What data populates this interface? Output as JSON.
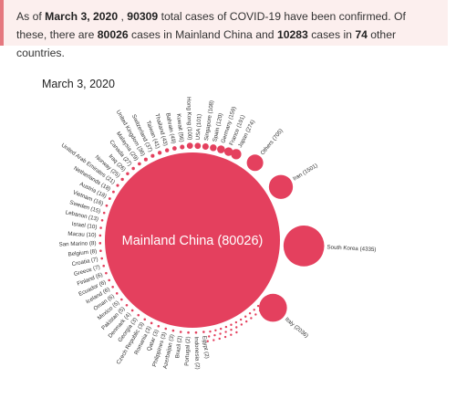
{
  "banner": {
    "t1": "As of ",
    "date": "March 3, 2020",
    "t2": " , ",
    "total": "90309",
    "t3": " total cases of COVID-19 have been confirmed. Of these, there are ",
    "china": "80026",
    "t4": " cases in Mainland China and ",
    "other": "10283",
    "t5": " cases in ",
    "countries": "74",
    "t6": " other countries."
  },
  "colors": {
    "bubble": "#e4405e",
    "accent": "#e5787f"
  },
  "chart_data": {
    "type": "bubble",
    "title": "March 3, 2020",
    "center": {
      "name": "Mainland China",
      "value": 80026,
      "label": "Mainland China (80026)"
    },
    "countries": [
      {
        "name": "Italy",
        "value": 2036,
        "label": "Italy (2036)"
      },
      {
        "name": "South Korea",
        "value": 4335,
        "label": "South Korea (4335)"
      },
      {
        "name": "Iran",
        "value": 1501,
        "label": "Iran (1501)"
      },
      {
        "name": "Others",
        "value": 705,
        "label": "Others (705)"
      },
      {
        "name": "Japan",
        "value": 274,
        "label": "Japan (274)"
      },
      {
        "name": "France",
        "value": 191,
        "label": "France (191)"
      },
      {
        "name": "Germany",
        "value": 159,
        "label": "Germany (159)"
      },
      {
        "name": "Spain",
        "value": 120,
        "label": "Spain (120)"
      },
      {
        "name": "Singapore",
        "value": 108,
        "label": "Singapore (108)"
      },
      {
        "name": "USA",
        "value": 101,
        "label": "USA (101)"
      },
      {
        "name": "Hong Kong",
        "value": 100,
        "label": "Hong Kong (100)"
      },
      {
        "name": "Kuwait",
        "value": 56,
        "label": "Kuwait (56)"
      },
      {
        "name": "Bahrain",
        "value": 49,
        "label": "Bahrain (49)"
      },
      {
        "name": "Thailand",
        "value": 43,
        "label": "Thailand (43)"
      },
      {
        "name": "Taiwan",
        "value": 41,
        "label": "Taiwan (41)"
      },
      {
        "name": "Switzerland",
        "value": 37,
        "label": "Switzerland (37)"
      },
      {
        "name": "United Kingdom",
        "value": 36,
        "label": "United Kingdom (36)"
      },
      {
        "name": "Malaysia",
        "value": 29,
        "label": "Malaysia (29)"
      },
      {
        "name": "Canada",
        "value": 27,
        "label": "Canada (27)"
      },
      {
        "name": "Iraq",
        "value": 26,
        "label": "Iraq (26)"
      },
      {
        "name": "Norway",
        "value": 25,
        "label": "Norway (25)"
      },
      {
        "name": "United Arab Emirates",
        "value": 21,
        "label": "United Arab Emirates (21)"
      },
      {
        "name": "Netherlands",
        "value": 18,
        "label": "Netherlands (18)"
      },
      {
        "name": "Austria",
        "value": 18,
        "label": "Austria (18)"
      },
      {
        "name": "Vietnam",
        "value": 16,
        "label": "Vietnam (16)"
      },
      {
        "name": "Sweden",
        "value": 15,
        "label": "Sweden (15)"
      },
      {
        "name": "Lebanon",
        "value": 13,
        "label": "Lebanon (13)"
      },
      {
        "name": "Israel",
        "value": 10,
        "label": "Israel (10)"
      },
      {
        "name": "Macau",
        "value": 10,
        "label": "Macau (10)"
      },
      {
        "name": "San Marino",
        "value": 8,
        "label": "San Marino (8)"
      },
      {
        "name": "Belgium",
        "value": 8,
        "label": "Belgium (8)"
      },
      {
        "name": "Croatia",
        "value": 7,
        "label": "Croatia (7)"
      },
      {
        "name": "Greece",
        "value": 7,
        "label": "Greece (7)"
      },
      {
        "name": "Finland",
        "value": 6,
        "label": "Finland (6)"
      },
      {
        "name": "Ecuador",
        "value": 6,
        "label": "Ecuador (6)"
      },
      {
        "name": "Iceland",
        "value": 6,
        "label": "Iceland (6)"
      },
      {
        "name": "Oman",
        "value": 6,
        "label": "Oman (6)"
      },
      {
        "name": "Mexico",
        "value": 5,
        "label": "Mexico (5)"
      },
      {
        "name": "Pakistan",
        "value": 5,
        "label": "Pakistan (5)"
      },
      {
        "name": "Denmark",
        "value": 4,
        "label": "Denmark (4)"
      },
      {
        "name": "Georgia",
        "value": 3,
        "label": "Georgia (3)"
      },
      {
        "name": "Czech Republic",
        "value": 3,
        "label": "Czech Republic (3)"
      },
      {
        "name": "Romania",
        "value": 3,
        "label": "Romania (3)"
      },
      {
        "name": "Qatar",
        "value": 3,
        "label": "Qatar (3)"
      },
      {
        "name": "Philippines",
        "value": 3,
        "label": "Philippines (3)"
      },
      {
        "name": "Azerbaijan",
        "value": 3,
        "label": "Azerbaijan (3)"
      },
      {
        "name": "Brazil",
        "value": 2,
        "label": "Brazil (2)"
      },
      {
        "name": "Portugal",
        "value": 2,
        "label": "Portugal (2)"
      },
      {
        "name": "Indonesia",
        "value": 2,
        "label": "Indonesia (2)"
      },
      {
        "name": "Egypt",
        "value": 2,
        "label": "Egypt (2)"
      }
    ]
  }
}
